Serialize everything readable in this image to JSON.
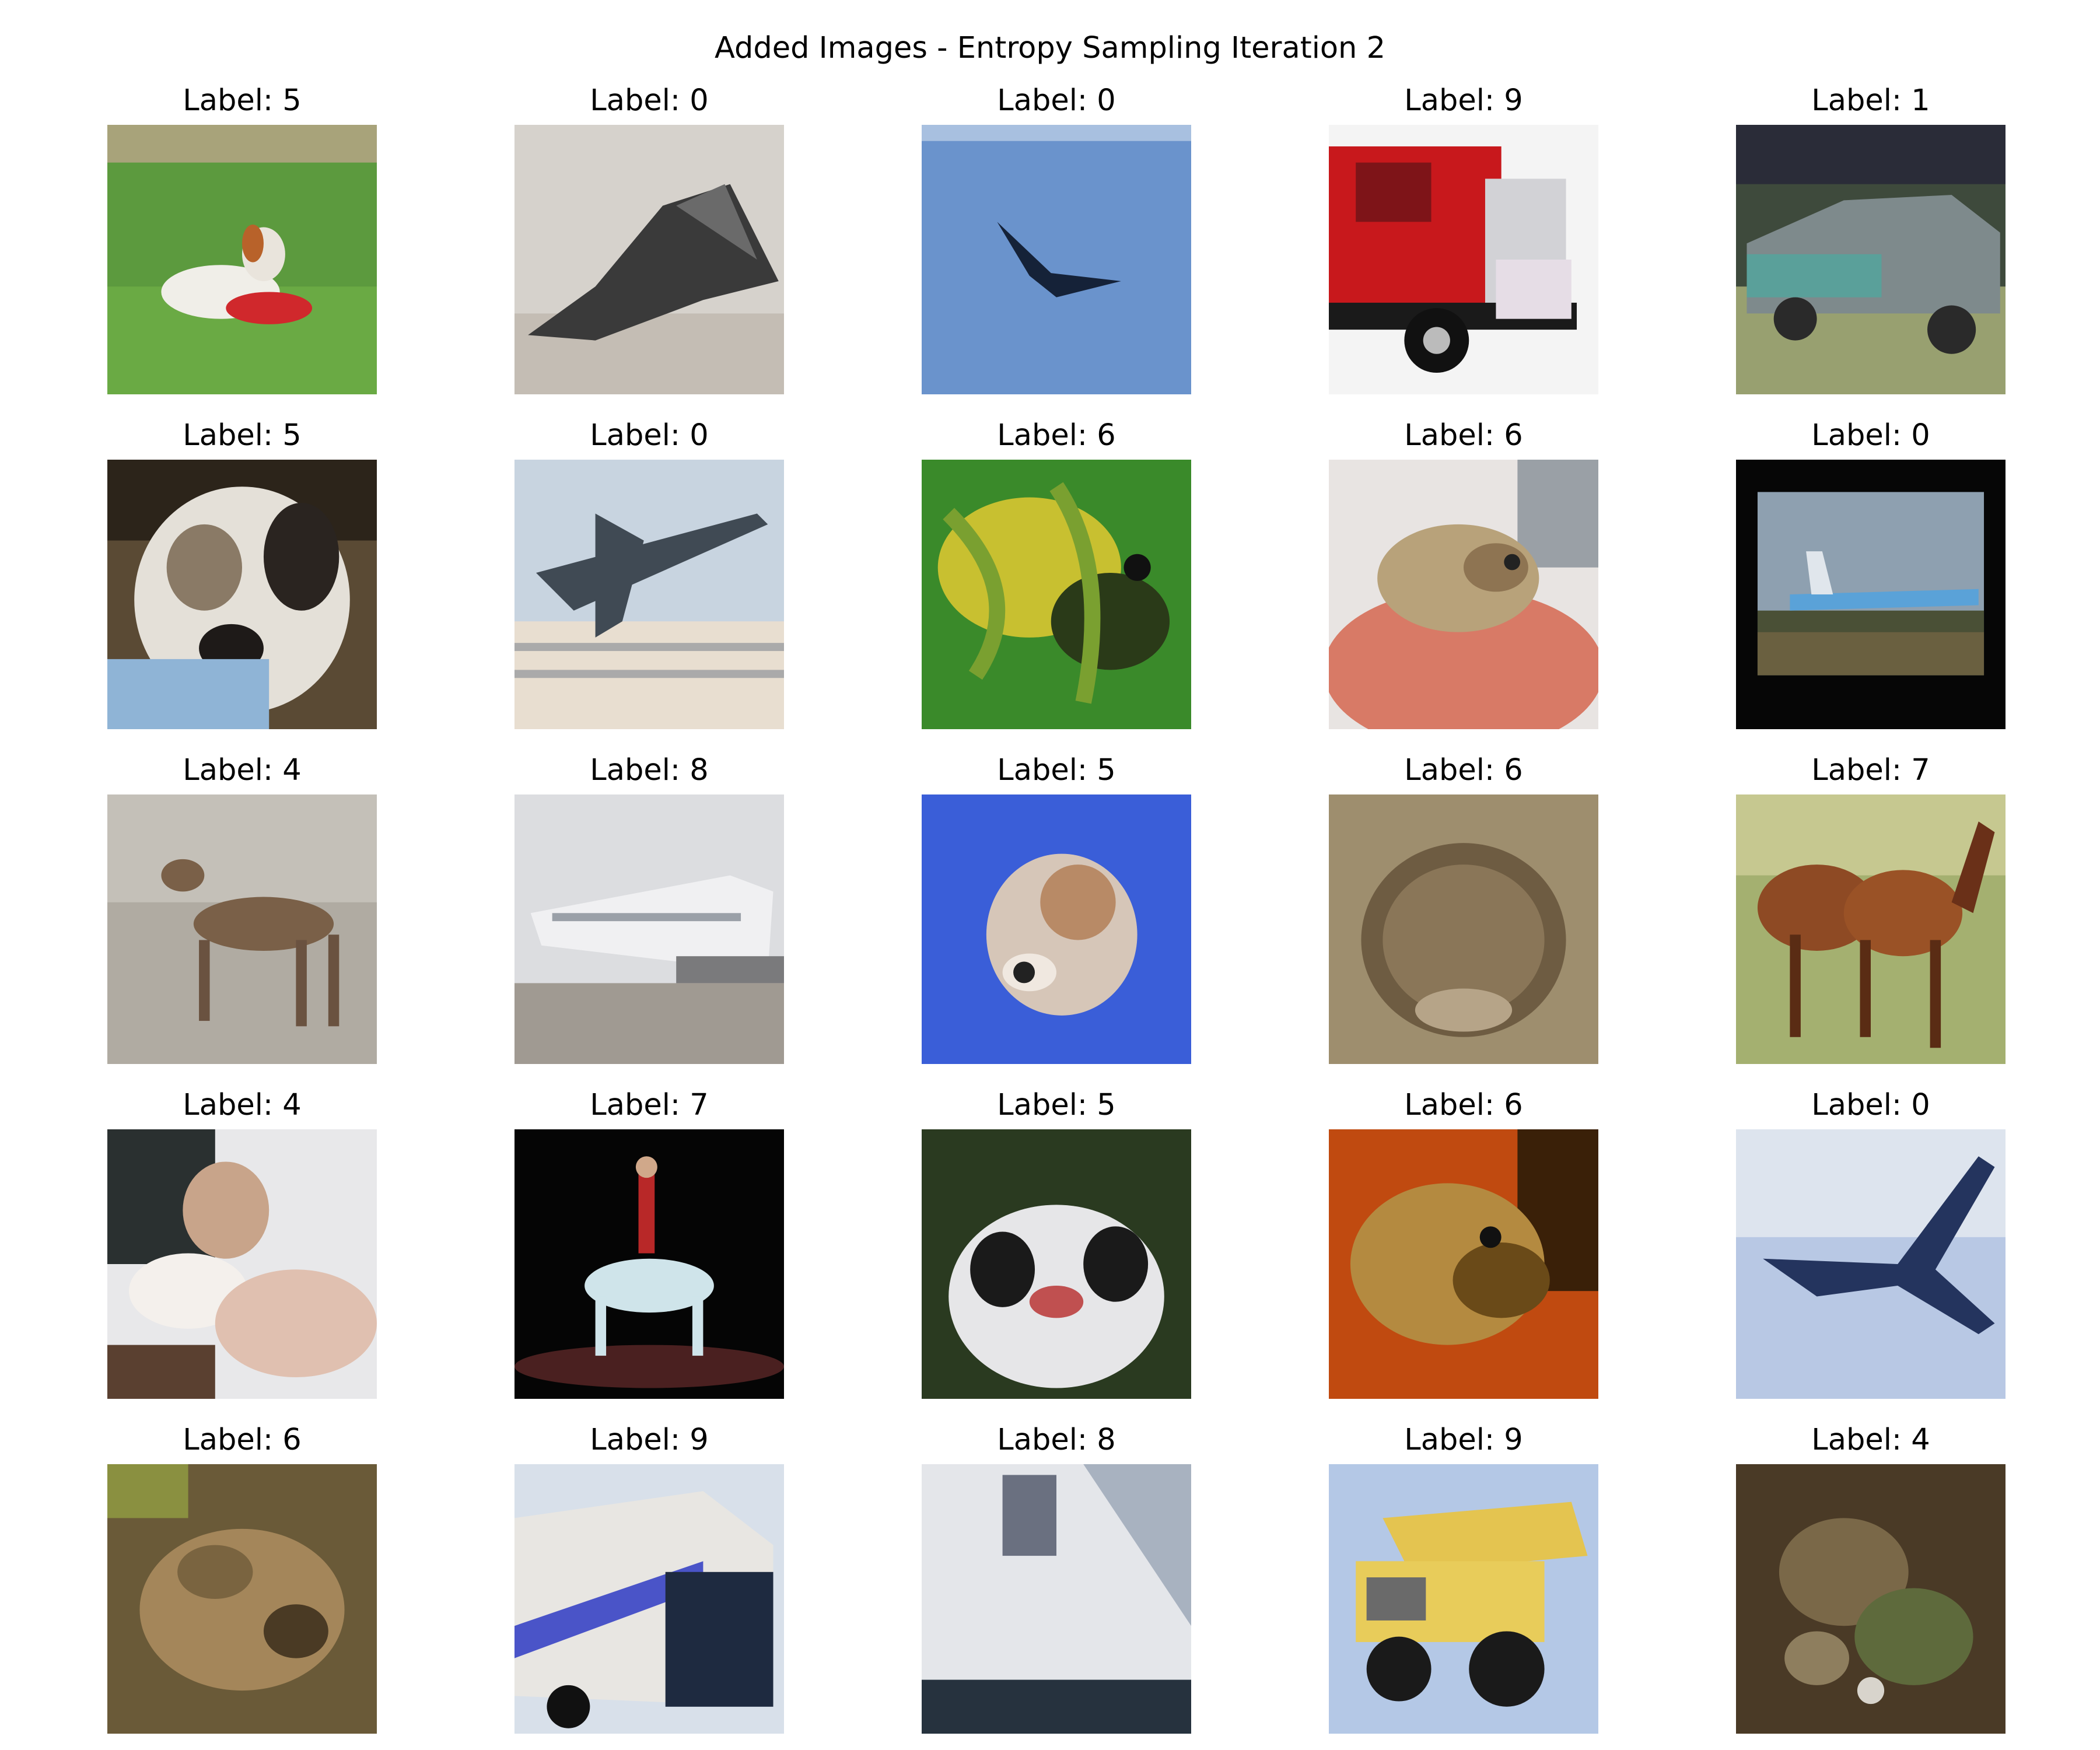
{
  "title": "Added Images - Entropy Sampling Iteration 2",
  "images": [
    {
      "label": "Label: 5",
      "subject": "dog"
    },
    {
      "label": "Label: 0",
      "subject": "airplane"
    },
    {
      "label": "Label: 0",
      "subject": "airplane"
    },
    {
      "label": "Label: 9",
      "subject": "truck"
    },
    {
      "label": "Label: 1",
      "subject": "automobile"
    },
    {
      "label": "Label: 5",
      "subject": "dog"
    },
    {
      "label": "Label: 0",
      "subject": "airplane"
    },
    {
      "label": "Label: 6",
      "subject": "frog"
    },
    {
      "label": "Label: 6",
      "subject": "frog"
    },
    {
      "label": "Label: 0",
      "subject": "airplane"
    },
    {
      "label": "Label: 4",
      "subject": "deer"
    },
    {
      "label": "Label: 8",
      "subject": "ship"
    },
    {
      "label": "Label: 5",
      "subject": "dog"
    },
    {
      "label": "Label: 6",
      "subject": "frog"
    },
    {
      "label": "Label: 7",
      "subject": "horse"
    },
    {
      "label": "Label: 4",
      "subject": "deer"
    },
    {
      "label": "Label: 7",
      "subject": "horse"
    },
    {
      "label": "Label: 5",
      "subject": "dog"
    },
    {
      "label": "Label: 6",
      "subject": "frog"
    },
    {
      "label": "Label: 0",
      "subject": "airplane"
    },
    {
      "label": "Label: 6",
      "subject": "frog"
    },
    {
      "label": "Label: 9",
      "subject": "truck"
    },
    {
      "label": "Label: 8",
      "subject": "ship"
    },
    {
      "label": "Label: 9",
      "subject": "truck"
    },
    {
      "label": "Label: 4",
      "subject": "deer"
    }
  ]
}
